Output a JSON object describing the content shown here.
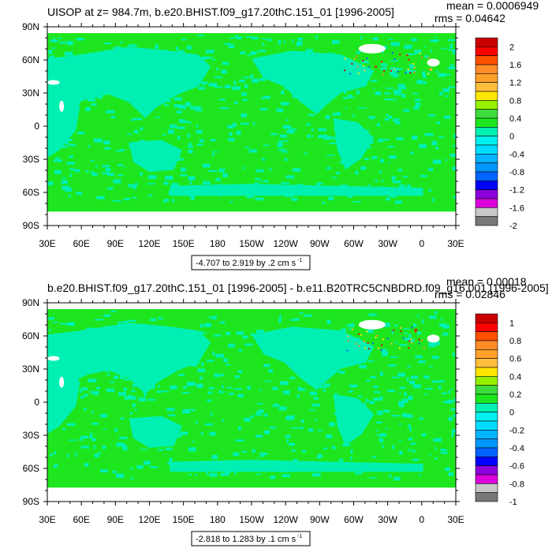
{
  "chart_data": [
    {
      "type": "heatmap",
      "title": "UISOP at z= 984.7m, b.e20.BHIST.f09_g17.20thC.151_01 [1996-2005]",
      "stats": {
        "mean": "mean = 0.0006949",
        "rms": "rms = 0.04642"
      },
      "range_label": "-4.707 to 2.919 by .2 cm s",
      "range_units_exp": "-1",
      "x_ticks": [
        "30E",
        "60E",
        "90E",
        "120E",
        "150E",
        "180",
        "150W",
        "120W",
        "90W",
        "60W",
        "30W",
        "0",
        "30E"
      ],
      "y_ticks": [
        "90N",
        "60N",
        "30N",
        "0",
        "30S",
        "60S",
        "90S"
      ],
      "colorbar_labels": [
        "2",
        "1.6",
        "1.2",
        "0.8",
        "0.4",
        "0",
        "-0.4",
        "-0.8",
        "-1.2",
        "-1.6",
        "-2"
      ],
      "colorbar_colors": [
        "#c80000",
        "#ff0000",
        "#ff5000",
        "#ff8c28",
        "#ffa028",
        "#ffbe3c",
        "#ffe600",
        "#96f000",
        "#3cdc3c",
        "#1ee61e",
        "#00f0b4",
        "#00f0f0",
        "#00dcff",
        "#00b4ff",
        "#0096ff",
        "#0064ff",
        "#0000ff",
        "#8c00dc",
        "#dc00dc",
        "#c8c8c8",
        "#787878"
      ],
      "field_colors": {
        "background": "#1ee61e",
        "shade": "#00f0b4",
        "missing": "#ffffff"
      }
    },
    {
      "type": "heatmap",
      "title": "b.e20.BHIST.f09_g17.20thC.151_01 [1996-2005] - b.e11.B20TRC5CNBDRD.f09_g16.001 [1996-2005]",
      "stats": {
        "mean": "mean = 0.00018",
        "rms": "rms = 0.02846"
      },
      "range_label": "-2.818 to 1.283 by .1 cm s",
      "range_units_exp": "-1",
      "x_ticks": [
        "30E",
        "60E",
        "90E",
        "120E",
        "150E",
        "180",
        "150W",
        "120W",
        "90W",
        "60W",
        "30W",
        "0",
        "30E"
      ],
      "y_ticks": [
        "90N",
        "60N",
        "30N",
        "0",
        "30S",
        "60S",
        "90S"
      ],
      "colorbar_labels": [
        "1",
        "0.8",
        "0.6",
        "0.4",
        "0.2",
        "0",
        "-0.2",
        "-0.4",
        "-0.6",
        "-0.8",
        "-1"
      ],
      "colorbar_colors": [
        "#c80000",
        "#ff0000",
        "#ff5000",
        "#ff8c28",
        "#ffa028",
        "#ffbe3c",
        "#ffe600",
        "#96f000",
        "#3cdc3c",
        "#1ee61e",
        "#00f0b4",
        "#00f0f0",
        "#00dcff",
        "#00b4ff",
        "#0096ff",
        "#0064ff",
        "#0000ff",
        "#8c00dc",
        "#dc00dc",
        "#c8c8c8",
        "#787878"
      ],
      "field_colors": {
        "background": "#1ee61e",
        "shade": "#00f0b4",
        "missing": "#ffffff"
      }
    }
  ]
}
